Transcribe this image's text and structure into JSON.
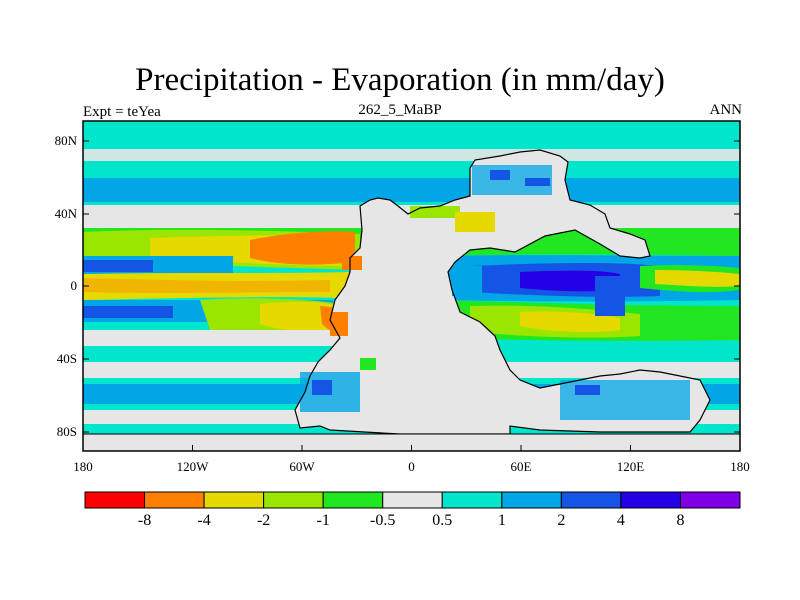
{
  "title": "Precipitation - Evaporation (in mm/day)",
  "subtitle": "262_5_MaBP",
  "experiment": "Expt = teYea",
  "season": "ANN",
  "map": {
    "lat_ticks": [
      "80N",
      "40N",
      "0",
      "40S",
      "80S"
    ],
    "lon_ticks": [
      "180",
      "120W",
      "60W",
      "0",
      "60E",
      "120E",
      "180"
    ]
  },
  "colorbar": {
    "colors": [
      "#ff0000",
      "#ff7f00",
      "#e6d900",
      "#9be600",
      "#22e622",
      "#e6e6e6",
      "#00e6cc",
      "#00a6e6",
      "#1555e6",
      "#2400e6",
      "#7f00e6"
    ],
    "labels": [
      "-8",
      "-4",
      "-2",
      "-1",
      "-0.5",
      "0.5",
      "1",
      "2",
      "4",
      "8"
    ]
  },
  "colors": {
    "landmask": "#e6e6e6",
    "coast": "#000000"
  }
}
